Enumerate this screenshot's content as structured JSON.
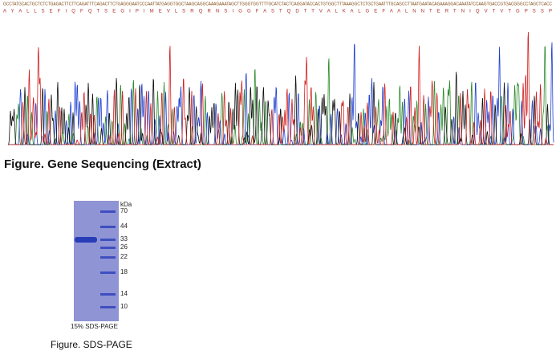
{
  "sequencing": {
    "dna": "GCCTATGCACTGCTCTCTGAGACTTCTTCAGATTTCAGACTTCTGAGGGAATCCCAATTATGAGGTGGCTAAGCAGGCAAAGAAATAGCTTGGGTGGTTTTGCATCTACTCAGGATACCACTGTGGCTTTAAAGGCTCTGCTGAATTTGCAGCCTTAATGAATACAGAAAGGACAAATATCCAAGTGACCGTGACGGGCCTAGCTCACC",
    "protein": "A Y A L L S E F I Q F Q T S E G I P I M E V L S R Q R N S I G G F A S T Q D T T V A L K A L G E F A A L N N T E R T N I Q V T V T G P S S P",
    "caption": "Figure. Gene Sequencing (Extract)"
  },
  "gel": {
    "unit": "kDa",
    "markers": [
      "70",
      "44",
      "33",
      "26",
      "22",
      "18",
      "14",
      "10"
    ],
    "label": "15% SDS-PAGE",
    "caption": "Figure. SDS-PAGE"
  }
}
